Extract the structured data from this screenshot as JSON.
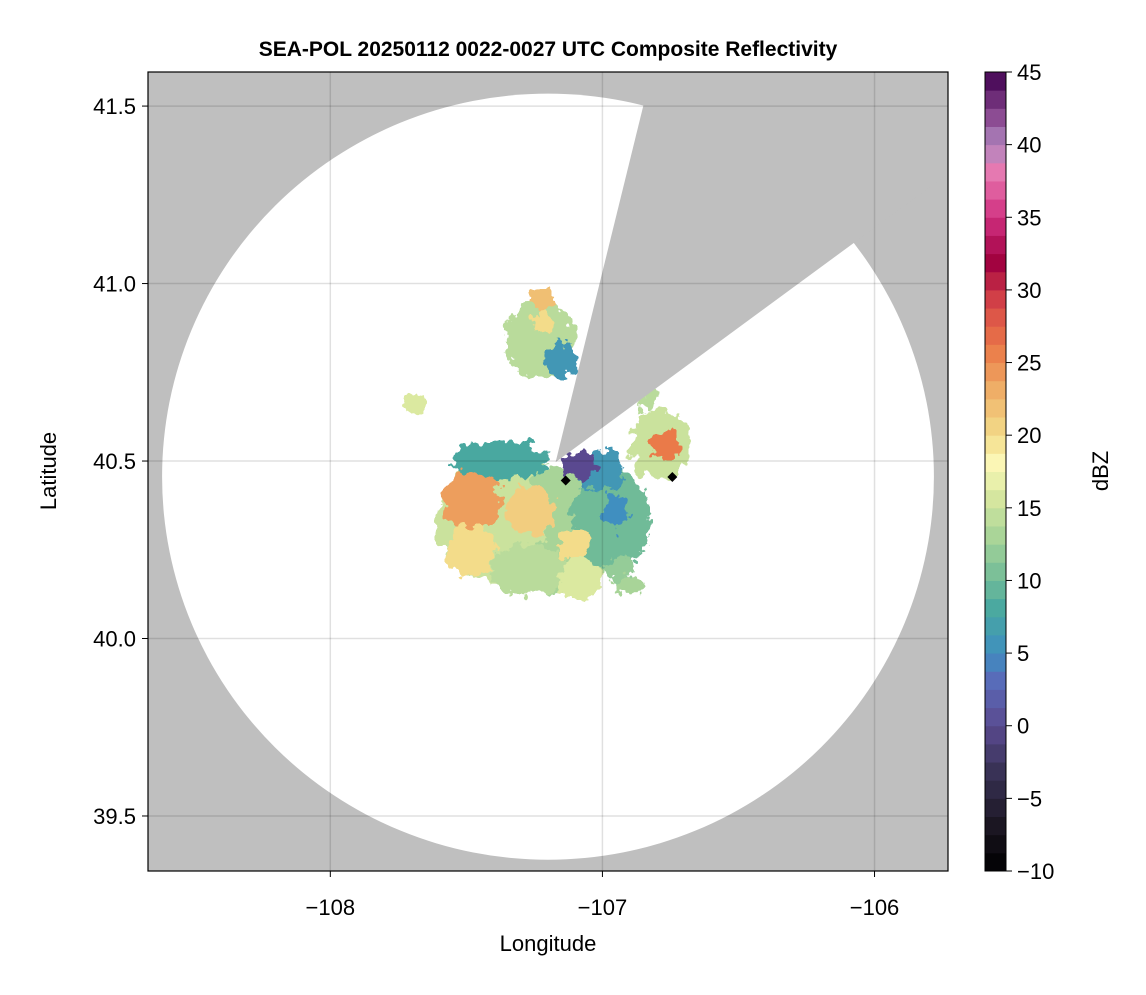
{
  "chart_data": {
    "type": "heatmap",
    "title": "SEA-POL 20250112 0022-0027 UTC Composite Reflectivity",
    "xlabel": "Longitude",
    "ylabel": "Latitude",
    "xlim": [
      -108.67,
      -105.73
    ],
    "ylim": [
      39.345,
      41.596
    ],
    "xticks": [
      -108,
      -107,
      -106
    ],
    "xtick_labels": [
      "−108",
      "−107",
      "−106"
    ],
    "yticks": [
      39.5,
      40.0,
      40.5,
      41.0,
      41.5
    ],
    "ytick_labels": [
      "39.5",
      "40.0",
      "40.5",
      "41.0",
      "41.5"
    ],
    "grid": true,
    "background_color": "#bfbfbf",
    "radar": {
      "lon": -107.2,
      "lat": 40.456,
      "max_range_km": 120
    },
    "blocked_sector": [
      [
        -107.172,
        40.497
      ],
      [
        -106.842,
        41.525
      ],
      [
        -106.061,
        41.123
      ]
    ],
    "colorbar": {
      "label": "dBZ",
      "range": [
        -10,
        45
      ],
      "bin_width": 1.25,
      "ticks": [
        -10,
        -5,
        0,
        5,
        10,
        15,
        20,
        25,
        30,
        35,
        40,
        45
      ],
      "tick_labels": [
        "−10",
        "−5",
        "0",
        "5",
        "10",
        "15",
        "20",
        "25",
        "30",
        "35",
        "40",
        "45"
      ],
      "colormap_stops": [
        [
          -10,
          "#000000"
        ],
        [
          -7,
          "#1a1520"
        ],
        [
          -3,
          "#3a3358"
        ],
        [
          0,
          "#5a4a90"
        ],
        [
          3,
          "#5a6ab8"
        ],
        [
          5,
          "#3f8fc0"
        ],
        [
          8,
          "#48a8a0"
        ],
        [
          10,
          "#70bb98"
        ],
        [
          13,
          "#a8d498"
        ],
        [
          16,
          "#dbe9a0"
        ],
        [
          18,
          "#fbf8b8"
        ],
        [
          20,
          "#f3dc8a"
        ],
        [
          23,
          "#efb068"
        ],
        [
          26,
          "#ea7a48"
        ],
        [
          29,
          "#d84848"
        ],
        [
          32,
          "#a00040"
        ],
        [
          35,
          "#d03080"
        ],
        [
          38,
          "#e878b0"
        ],
        [
          40,
          "#b088c0"
        ],
        [
          42,
          "#8a4890"
        ],
        [
          45,
          "#400050"
        ]
      ]
    },
    "echo_cells": [
      {
        "lon": -107.41,
        "lat": 40.334,
        "rx": 0.2,
        "ry": 0.17,
        "dbz": 15
      },
      {
        "lon": -107.154,
        "lat": 40.306,
        "rx": 0.22,
        "ry": 0.18,
        "dbz": 13
      },
      {
        "lon": -106.97,
        "lat": 40.334,
        "rx": 0.15,
        "ry": 0.14,
        "dbz": 10
      },
      {
        "lon": -107.264,
        "lat": 40.193,
        "rx": 0.15,
        "ry": 0.07,
        "dbz": 14
      },
      {
        "lon": -107.08,
        "lat": 40.166,
        "rx": 0.08,
        "ry": 0.06,
        "dbz": 16
      },
      {
        "lon": -107.374,
        "lat": 40.503,
        "rx": 0.18,
        "ry": 0.056,
        "dbz": 8
      },
      {
        "lon": -107.007,
        "lat": 40.475,
        "rx": 0.08,
        "ry": 0.06,
        "dbz": 6
      },
      {
        "lon": -107.08,
        "lat": 40.489,
        "rx": 0.07,
        "ry": 0.04,
        "dbz": 0
      },
      {
        "lon": -107.484,
        "lat": 40.389,
        "rx": 0.11,
        "ry": 0.085,
        "dbz": 24
      },
      {
        "lon": -107.264,
        "lat": 40.362,
        "rx": 0.09,
        "ry": 0.07,
        "dbz": 21
      },
      {
        "lon": -107.484,
        "lat": 40.249,
        "rx": 0.09,
        "ry": 0.07,
        "dbz": 20
      },
      {
        "lon": -107.1,
        "lat": 40.27,
        "rx": 0.06,
        "ry": 0.05,
        "dbz": 20
      },
      {
        "lon": -106.95,
        "lat": 40.36,
        "rx": 0.04,
        "ry": 0.05,
        "dbz": 5
      },
      {
        "lon": -106.934,
        "lat": 40.193,
        "rx": 0.05,
        "ry": 0.04,
        "dbz": 12
      },
      {
        "lon": -107.228,
        "lat": 40.841,
        "rx": 0.13,
        "ry": 0.11,
        "dbz": 14
      },
      {
        "lon": -107.154,
        "lat": 40.785,
        "rx": 0.06,
        "ry": 0.05,
        "dbz": 6
      },
      {
        "lon": -107.228,
        "lat": 40.954,
        "rx": 0.045,
        "ry": 0.03,
        "dbz": 22
      },
      {
        "lon": -107.22,
        "lat": 40.897,
        "rx": 0.035,
        "ry": 0.03,
        "dbz": 20
      },
      {
        "lon": -107.686,
        "lat": 40.658,
        "rx": 0.045,
        "ry": 0.035,
        "dbz": 16
      },
      {
        "lon": -106.787,
        "lat": 40.545,
        "rx": 0.11,
        "ry": 0.1,
        "dbz": 15
      },
      {
        "lon": -106.769,
        "lat": 40.545,
        "rx": 0.055,
        "ry": 0.042,
        "dbz": 26
      },
      {
        "lon": -106.83,
        "lat": 40.68,
        "rx": 0.03,
        "ry": 0.04,
        "dbz": 14
      },
      {
        "lon": -106.9,
        "lat": 40.15,
        "rx": 0.06,
        "ry": 0.02,
        "dbz": 13
      }
    ],
    "point_markers": [
      {
        "lon": -106.743,
        "lat": 40.455,
        "dbz": -10
      },
      {
        "lon": -107.135,
        "lat": 40.445,
        "dbz": -10
      }
    ]
  }
}
